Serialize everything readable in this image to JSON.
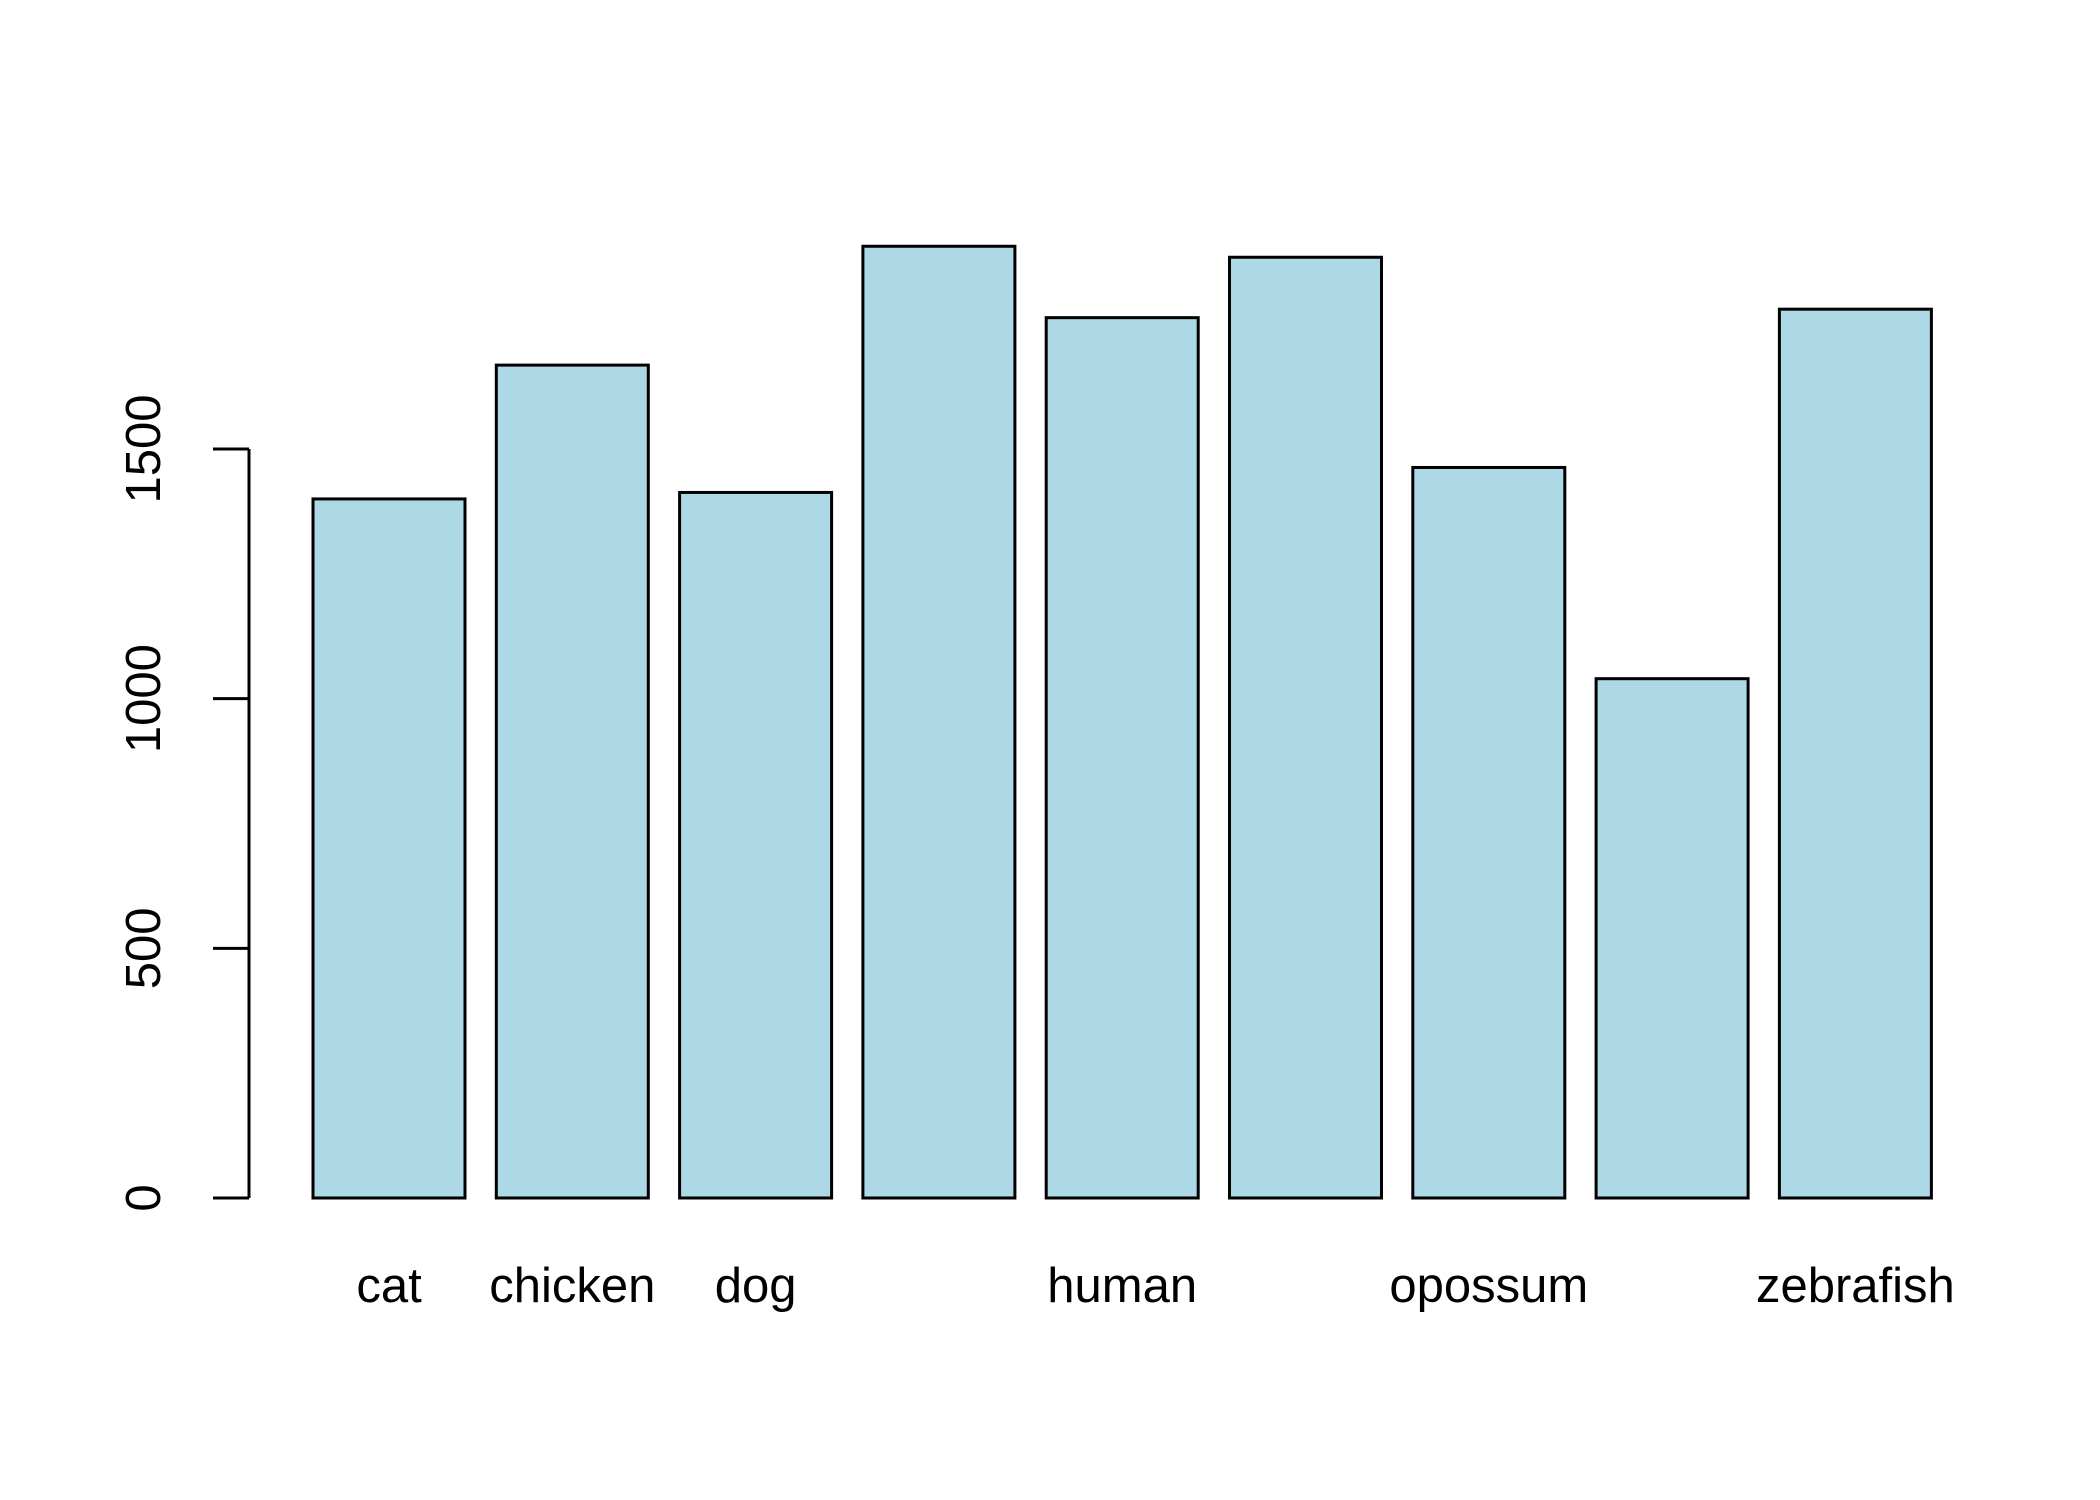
{
  "chart_data": {
    "type": "bar",
    "title": "",
    "xlabel": "",
    "ylabel": "",
    "categories": [
      "cat",
      "chicken",
      "dog",
      "",
      "human",
      "",
      "opossum",
      "",
      "zebrafish"
    ],
    "values": [
      1400,
      1668,
      1413,
      1906,
      1763,
      1884,
      1463,
      1040,
      1780
    ],
    "ylim": [
      0,
      1950
    ],
    "y_ticks": [
      0,
      500,
      1000,
      1500
    ],
    "y_tick_labels": [
      "0",
      "500",
      "1000",
      "1500"
    ],
    "grid": false,
    "legend": "none",
    "colors": {
      "bar_fill": "#ADD8E6",
      "bar_stroke": "#000000",
      "axis": "#000000",
      "background": "#ffffff"
    }
  }
}
